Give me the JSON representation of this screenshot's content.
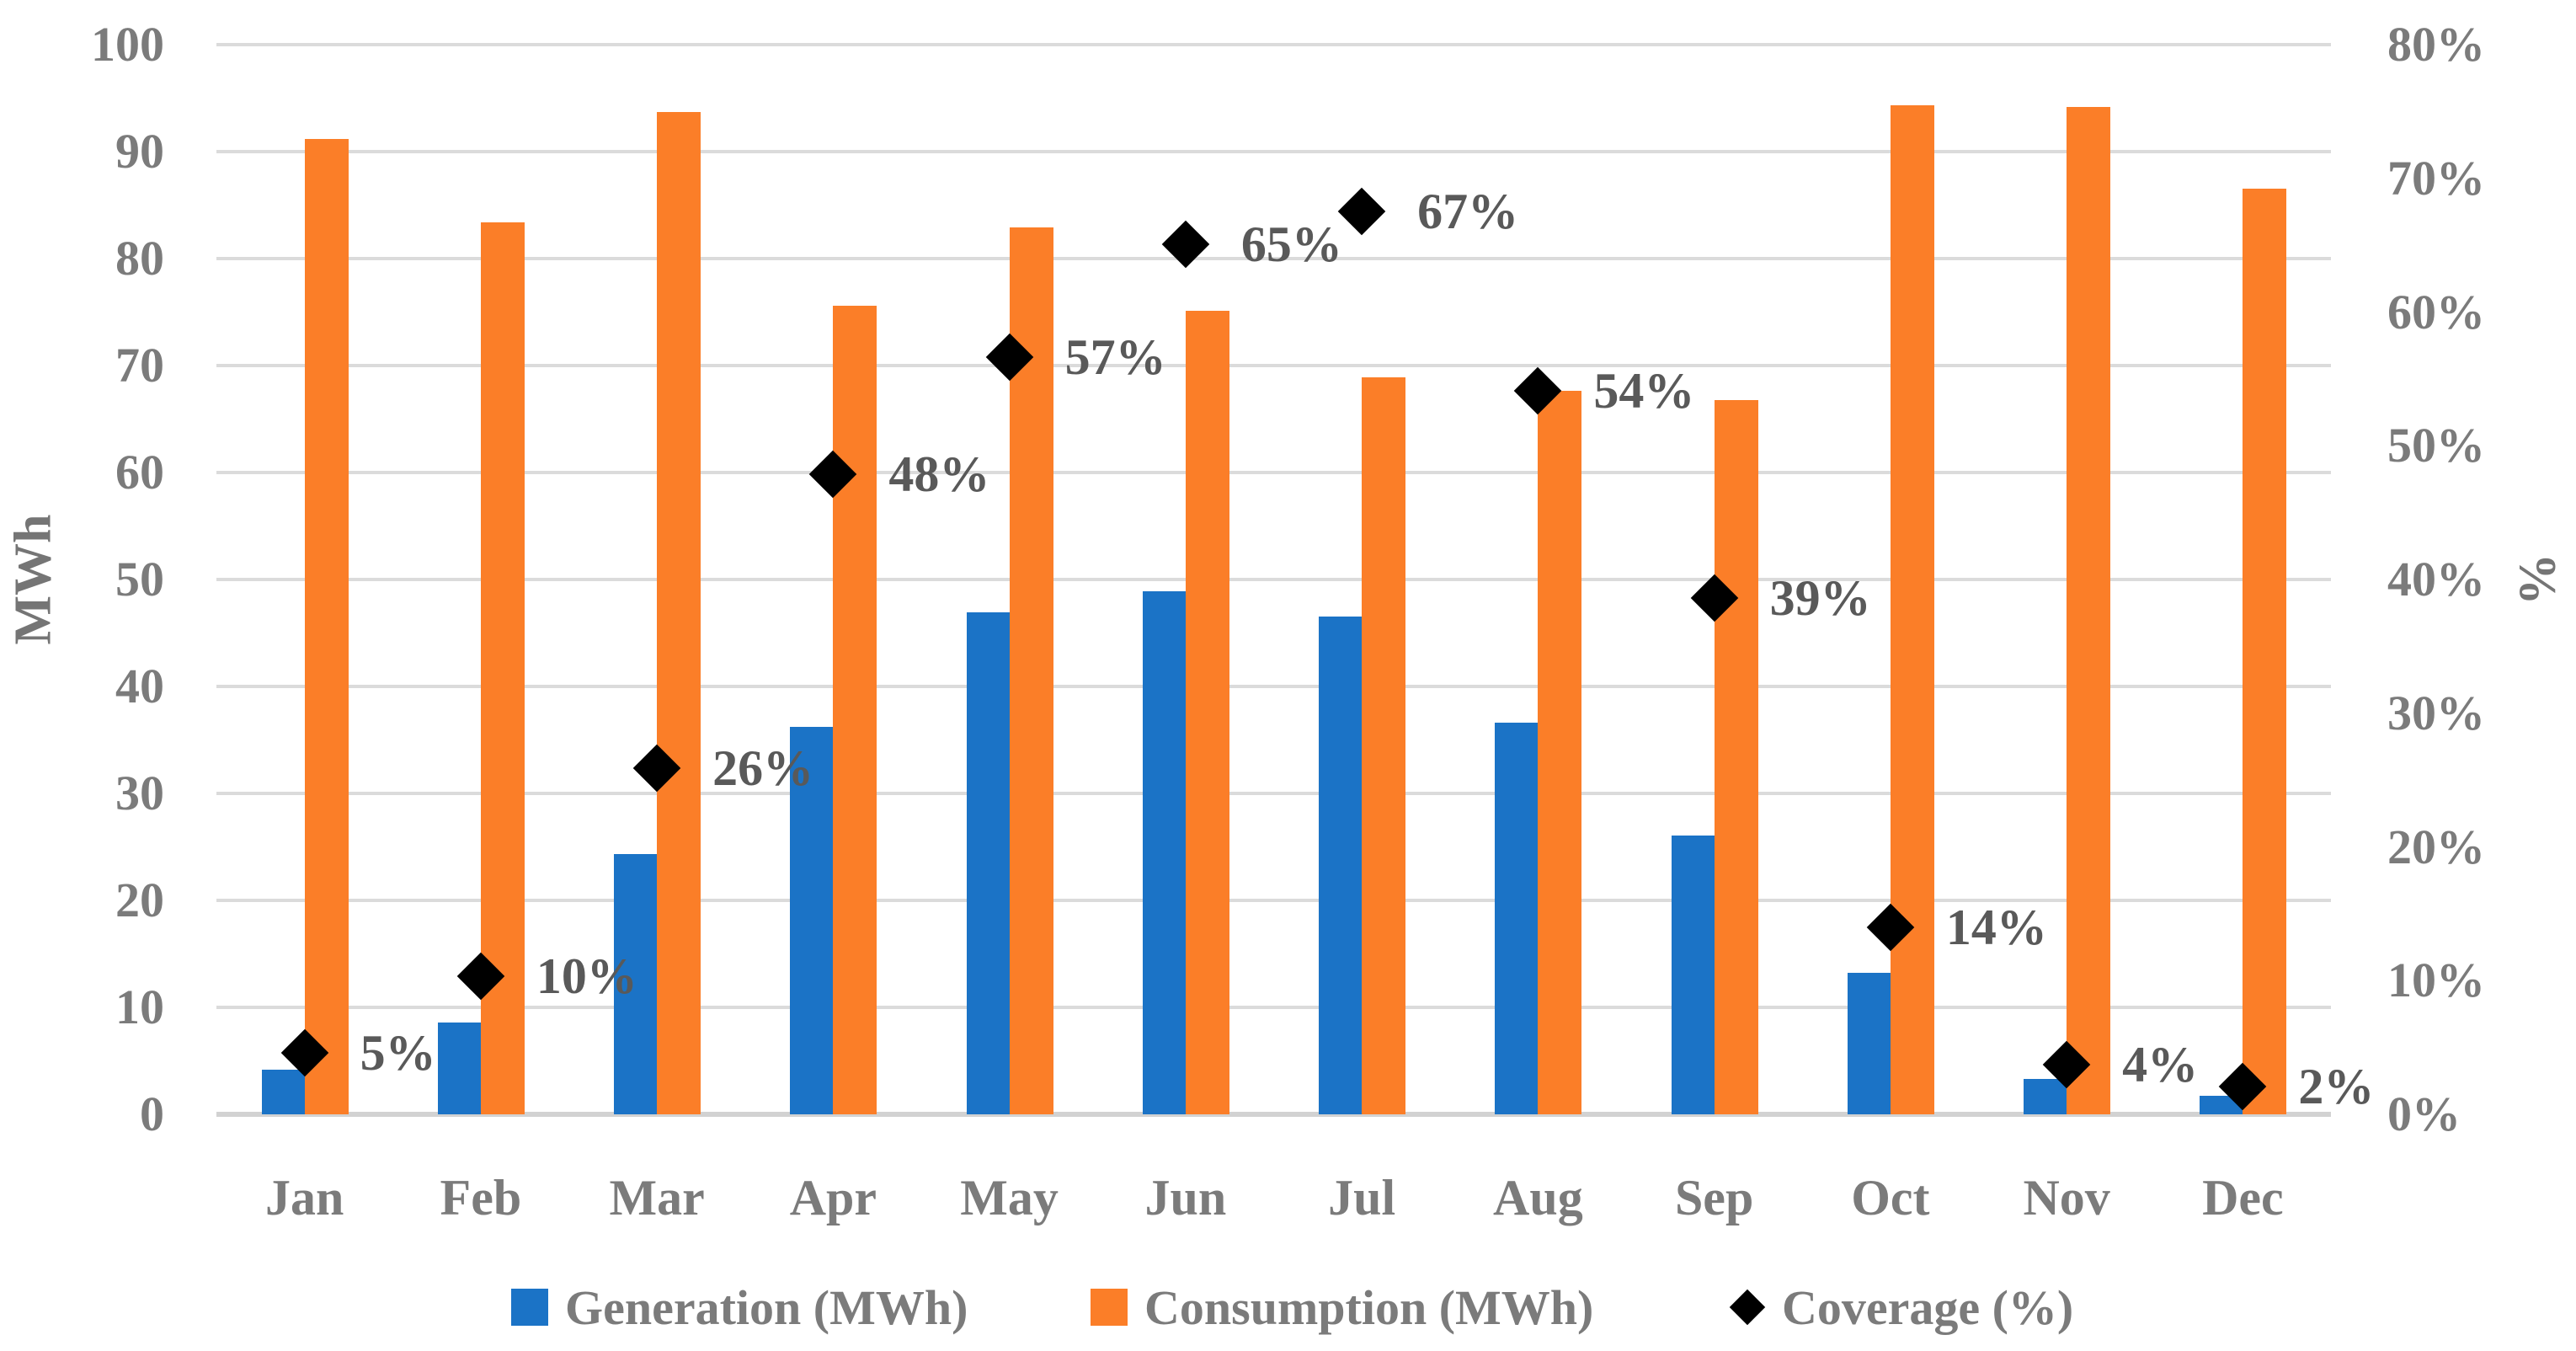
{
  "chart_data": {
    "type": "bar",
    "title": "",
    "categories": [
      "Jan",
      "Feb",
      "Mar",
      "Apr",
      "May",
      "Jun",
      "Jul",
      "Aug",
      "Sep",
      "Oct",
      "Nov",
      "Dec"
    ],
    "series": [
      {
        "name": "Generation (MWh)",
        "type": "bar",
        "axis": "primary",
        "color": "#1B73C6",
        "values": [
          4.2,
          8.6,
          24.3,
          36.2,
          46.9,
          48.9,
          46.5,
          36.6,
          26.1,
          13.2,
          3.3,
          1.7
        ]
      },
      {
        "name": "Consumption (MWh)",
        "type": "bar",
        "axis": "primary",
        "color": "#FB7E28",
        "values": [
          91.2,
          83.4,
          93.7,
          75.6,
          82.9,
          75.1,
          68.9,
          67.6,
          66.8,
          94.3,
          94.2,
          86.5
        ]
      },
      {
        "name": "Coverage (%)",
        "type": "scatter",
        "marker": "diamond",
        "axis": "secondary",
        "color": "#000000",
        "values": [
          4.6,
          10.3,
          25.9,
          47.9,
          56.6,
          65.1,
          67.5,
          54.1,
          38.6,
          14.0,
          3.7,
          2.1
        ],
        "labels": [
          "5%",
          "10%",
          "26%",
          "48%",
          "57%",
          "65%",
          "67%",
          "54%",
          "39%",
          "14%",
          "4%",
          "2%"
        ]
      }
    ],
    "left_axis": {
      "title": "MWh",
      "min": 0,
      "max": 100,
      "step": 10,
      "tick_labels": [
        "0",
        "10",
        "20",
        "30",
        "40",
        "50",
        "60",
        "70",
        "80",
        "90",
        "100"
      ]
    },
    "right_axis": {
      "title": "%",
      "min": 0,
      "max": 80,
      "step": 10,
      "tick_labels": [
        "0%",
        "10%",
        "20%",
        "30%",
        "40%",
        "50%",
        "60%",
        "70%",
        "80%"
      ]
    },
    "legend_position": "bottom",
    "grid": "horizontal"
  },
  "colors": {
    "background": "#FFFFFF",
    "gridline": "#DBDBDB",
    "axis_baseline": "#D2D2D2",
    "tick_text": "#7B7B7B",
    "data_label_text": "#595959",
    "axis_title_text": "#757575",
    "generation_blue": "#1B73C6",
    "consumption_orange": "#FB7E28",
    "coverage_black": "#000000"
  }
}
